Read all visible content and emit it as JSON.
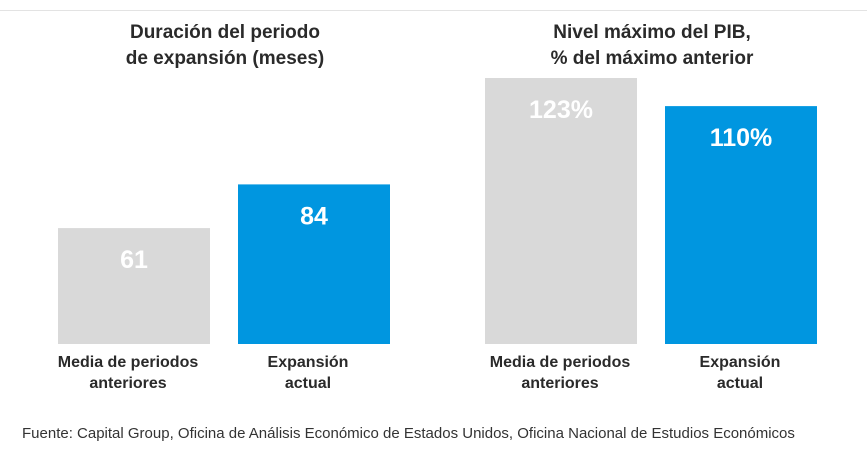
{
  "chart_data": [
    {
      "type": "bar",
      "title_lines": [
        "Duración del periodo",
        "de expansión (meses)"
      ],
      "categories": [
        {
          "lines": [
            "Media de periodos",
            "anteriores"
          ]
        },
        {
          "lines": [
            "Expansión",
            "actual"
          ]
        }
      ],
      "values": [
        61,
        84
      ],
      "value_labels": [
        "61",
        "84"
      ],
      "colors": [
        "#d9d9d9",
        "#0096e0"
      ],
      "ylim": [
        0,
        140
      ],
      "grid": false,
      "legend": "none"
    },
    {
      "type": "bar",
      "title_lines": [
        "Nivel máximo del PIB,",
        "% del máximo anterior"
      ],
      "categories": [
        {
          "lines": [
            "Media de periodos",
            "anteriores"
          ]
        },
        {
          "lines": [
            "Expansión",
            "actual"
          ]
        }
      ],
      "values": [
        123,
        110
      ],
      "value_labels": [
        "123%",
        "110%"
      ],
      "colors": [
        "#d9d9d9",
        "#0096e0"
      ],
      "ylim": [
        0,
        123
      ],
      "grid": false,
      "legend": "none"
    }
  ],
  "footer": {
    "source": "Fuente: Capital Group, Oficina de Análisis Económico de Estados Unidos, Oficina Nacional de Estudios Económicos"
  }
}
